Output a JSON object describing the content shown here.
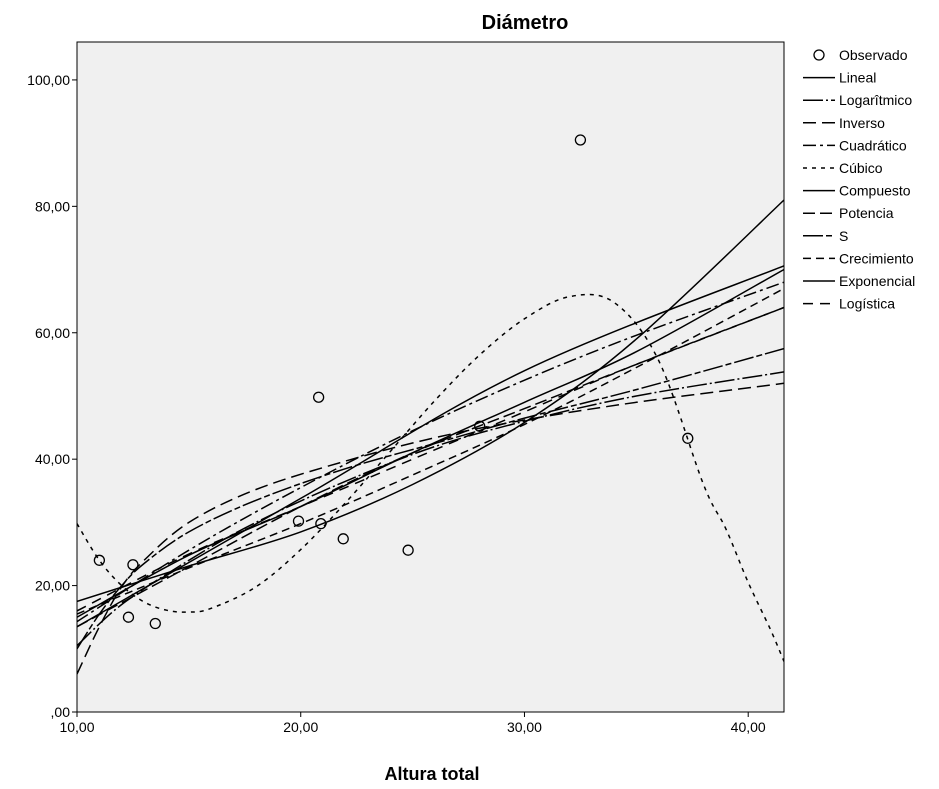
{
  "chart_data": {
    "type": "scatter",
    "title": "Diámetro",
    "xlabel": "Altura total",
    "ylabel": "",
    "xlim": [
      10,
      41.6
    ],
    "ylim": [
      0,
      106
    ],
    "x_ticks": [
      10,
      20,
      30,
      40
    ],
    "x_tick_labels": [
      "10,00",
      "20,00",
      "30,00",
      "40,00"
    ],
    "y_ticks": [
      0,
      20,
      40,
      60,
      80,
      100
    ],
    "y_tick_labels": [
      ",00",
      "20,00",
      "40,00",
      "60,00",
      "80,00",
      "100,00"
    ],
    "grid": false,
    "legend_position": "right",
    "observed": {
      "name": "Observado",
      "points": [
        {
          "x": 11.0,
          "y": 24.0
        },
        {
          "x": 12.3,
          "y": 15.0
        },
        {
          "x": 12.5,
          "y": 23.3
        },
        {
          "x": 13.5,
          "y": 14.0
        },
        {
          "x": 19.9,
          "y": 30.2
        },
        {
          "x": 20.8,
          "y": 49.8
        },
        {
          "x": 20.9,
          "y": 29.8
        },
        {
          "x": 21.9,
          "y": 27.4
        },
        {
          "x": 24.8,
          "y": 25.6
        },
        {
          "x": 28.0,
          "y": 45.2
        },
        {
          "x": 32.5,
          "y": 90.5
        },
        {
          "x": 37.3,
          "y": 43.3
        }
      ]
    },
    "series": [
      {
        "name": "Lineal",
        "dash": "none",
        "x": [
          10,
          20,
          30,
          41.6
        ],
        "y": [
          13.5,
          33.8,
          54.0,
          70.6
        ]
      },
      {
        "name": "Logarîtmico",
        "dash": "20 3 2 3",
        "x": [
          10,
          12,
          15,
          18,
          22,
          26,
          30,
          35,
          41.6
        ],
        "y": [
          10.5,
          17.0,
          24.0,
          30.0,
          36.5,
          42.0,
          46.0,
          50.0,
          53.8
        ]
      },
      {
        "name": "Inverso",
        "dash": "13 6",
        "x": [
          10,
          11,
          12,
          13,
          15,
          18,
          22,
          26,
          30,
          35,
          41.6
        ],
        "y": [
          6.0,
          13.5,
          19.8,
          24.0,
          30.0,
          35.2,
          39.7,
          43.4,
          46.2,
          49.0,
          52.0
        ]
      },
      {
        "name": "Cuadrático",
        "dash": "13 4 3 4",
        "x": [
          10,
          15,
          20,
          25,
          30,
          35,
          41.6
        ],
        "y": [
          14.3,
          25.6,
          35.5,
          44.5,
          52.5,
          59.6,
          68.0
        ]
      },
      {
        "name": "Cúbico",
        "dash": "4 5",
        "x": [
          10,
          11,
          12,
          13,
          14,
          15,
          16,
          18,
          20,
          22,
          24,
          26,
          28,
          30,
          32,
          34,
          36,
          38,
          39,
          40,
          41,
          41.6
        ],
        "y": [
          29.8,
          24.0,
          20.0,
          17.4,
          16.1,
          15.8,
          16.4,
          19.8,
          25.7,
          33.1,
          41.2,
          49.3,
          56.5,
          62.2,
          65.7,
          64.8,
          55.6,
          36.0,
          29.0,
          20.5,
          13.0,
          8.0
        ]
      },
      {
        "name": "Compuesto",
        "dash": "none",
        "x": [
          10,
          15,
          20,
          25,
          30,
          35,
          41.6
        ],
        "y": [
          17.5,
          23.1,
          28.5,
          36.0,
          45.8,
          59.0,
          81.0
        ]
      },
      {
        "name": "Potencia",
        "dash": "12 5",
        "x": [
          10,
          15,
          20,
          25,
          30,
          35,
          41.6
        ],
        "y": [
          13.5,
          23.0,
          32.5,
          41.0,
          48.0,
          55.0,
          64.0
        ]
      },
      {
        "name": "S",
        "dash": "20 3 6 3",
        "x": [
          10,
          11,
          12,
          13,
          15,
          18,
          22,
          26,
          30,
          35,
          41.6
        ],
        "y": [
          10.0,
          15.5,
          20.0,
          23.5,
          28.5,
          33.5,
          38.5,
          42.5,
          46.5,
          51.0,
          57.5
        ]
      },
      {
        "name": "Crecimiento",
        "dash": "8 5",
        "x": [
          10,
          15,
          20,
          25,
          30,
          35,
          41.6
        ],
        "y": [
          15.5,
          22.8,
          29.8,
          37.5,
          45.5,
          54.5,
          67.0
        ]
      },
      {
        "name": "Exponencial",
        "dash": "none",
        "x": [
          10,
          15,
          20,
          25,
          30,
          35,
          41.6
        ],
        "y": [
          15.0,
          24.8,
          32.5,
          41.0,
          49.0,
          57.0,
          70.0
        ]
      },
      {
        "name": "Logística",
        "dash": "10 7",
        "x": [
          10,
          15,
          20,
          25,
          30,
          35,
          41.6
        ],
        "y": [
          16.0,
          25.0,
          32.5,
          40.0,
          47.5,
          55.0,
          64.0
        ]
      }
    ]
  }
}
